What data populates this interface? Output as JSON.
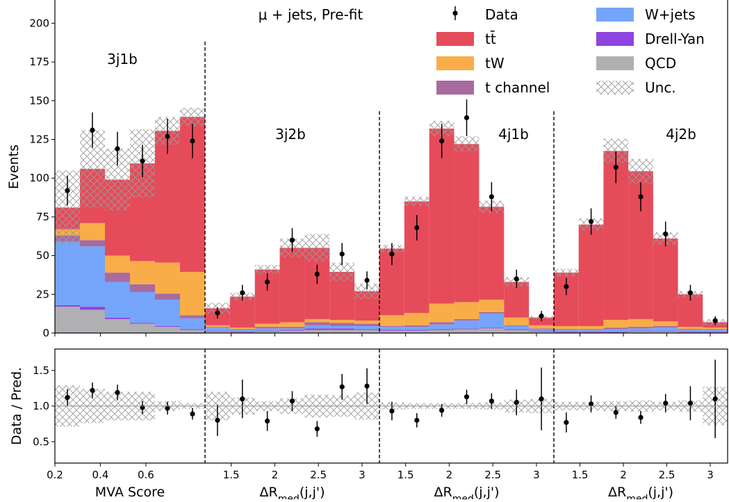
{
  "chart_data": {
    "type": "bar",
    "annotation": "μ + jets, Pre-fit",
    "upper": {
      "ylabel": "Events",
      "ylim": [
        0,
        215
      ],
      "yticks": [
        0,
        25,
        50,
        75,
        100,
        125,
        150,
        175,
        200
      ]
    },
    "lower": {
      "ylabel": "Data / Pred.",
      "ylim": [
        0.2,
        1.8
      ],
      "yticks": [
        0.5,
        1.0,
        1.5
      ],
      "yticklabels": [
        "0.5",
        "1.0",
        "1.5"
      ]
    },
    "legend": {
      "placement": "top-right",
      "entries": [
        {
          "key": "data",
          "label": "Data",
          "kind": "errorbar"
        },
        {
          "key": "ttbar",
          "label": "tt̄",
          "kind": "patch"
        },
        {
          "key": "tw",
          "label": "tW",
          "kind": "patch"
        },
        {
          "key": "tchan",
          "label": "t channel",
          "kind": "patch"
        },
        {
          "key": "wjets",
          "label": "W+jets",
          "kind": "patch"
        },
        {
          "key": "dy",
          "label": "Drell-Yan",
          "kind": "patch"
        },
        {
          "key": "qcd",
          "label": "QCD",
          "kind": "patch"
        },
        {
          "key": "unc",
          "label": "Unc.",
          "kind": "hatch"
        }
      ]
    },
    "colors": {
      "ttbar": "#e64b5a",
      "tw": "#f8ad48",
      "tchan": "#a96a9f",
      "wjets": "#74a5fb",
      "dy": "#8e44de",
      "qcd": "#b0afb2"
    },
    "stack_order": [
      "qcd",
      "dy",
      "wjets",
      "tchan",
      "tw",
      "ttbar"
    ],
    "regions": [
      {
        "name": "3j1b",
        "xlabel": "MVA Score",
        "xlim": [
          0.2,
          0.86
        ],
        "xticks": [
          0.2,
          0.4,
          0.6
        ],
        "xticklabels": [
          "0.2",
          "0.4",
          "0.6"
        ],
        "edges": [
          0.2,
          0.31,
          0.42,
          0.53,
          0.64,
          0.75,
          0.86
        ],
        "centers": [
          0.255,
          0.365,
          0.475,
          0.585,
          0.695,
          0.805
        ],
        "stacks": {
          "qcd": [
            17,
            15,
            9,
            6,
            4,
            2
          ],
          "dy": [
            1,
            2,
            1,
            0.5,
            0.5,
            0.5
          ],
          "wjets": [
            41,
            39,
            23,
            20,
            17,
            7
          ],
          "tchan": [
            4,
            4,
            6,
            5,
            4,
            2
          ],
          "tw": [
            4,
            11,
            11,
            15,
            20,
            28
          ],
          "ttbar": [
            14,
            35,
            49,
            63,
            85,
            100
          ]
        },
        "unc": [
          24,
          25,
          20,
          22,
          9,
          6
        ],
        "data": {
          "y": [
            92,
            131,
            119,
            111,
            127,
            124
          ],
          "err": [
            9.6,
            11.4,
            10.9,
            10.5,
            11.3,
            11.1
          ]
        },
        "ratio": {
          "y": [
            1.12,
            1.22,
            1.19,
            0.98,
            0.97,
            0.89
          ],
          "err": [
            0.12,
            0.11,
            0.11,
            0.09,
            0.09,
            0.08
          ],
          "unc": [
            0.29,
            0.24,
            0.2,
            0.2,
            0.07,
            0.04
          ]
        }
      },
      {
        "name": "3j2b",
        "xlabel": "ΔR_med(j,j')",
        "xlim": [
          1.2,
          3.2
        ],
        "xticks": [
          1.5,
          2.0,
          2.5,
          3.0
        ],
        "xticklabels": [
          "1.5",
          "2",
          "2.5",
          "3"
        ],
        "edges": [
          1.2,
          1.4857,
          1.7714,
          2.0571,
          2.3429,
          2.6286,
          2.9143,
          3.2
        ],
        "centers": [
          1.3429,
          1.6286,
          1.9143,
          2.2,
          2.4857,
          2.7714,
          3.0571
        ],
        "stacks": {
          "qcd": [
            1,
            0.5,
            1,
            1.5,
            2,
            2,
            2
          ],
          "dy": [
            0.5,
            0.5,
            0.5,
            0.5,
            1,
            1,
            0.5
          ],
          "wjets": [
            2,
            1,
            1.5,
            1,
            2,
            1.5,
            2
          ],
          "tchan": [
            0.5,
            0.5,
            1,
            1,
            2,
            2,
            1.5
          ],
          "tw": [
            1,
            1,
            2,
            3,
            2,
            2,
            2
          ],
          "ttbar": [
            11,
            20,
            35,
            48,
            46,
            31,
            19
          ]
        },
        "unc": [
          3.5,
          2.5,
          3,
          6,
          9,
          6,
          5
        ],
        "data": {
          "y": [
            13,
            26,
            33,
            60,
            38,
            51,
            34
          ],
          "err": [
            3.6,
            5.1,
            5.7,
            7.7,
            6.2,
            7.1,
            5.8
          ]
        },
        "ratio": {
          "y": [
            0.8,
            1.1,
            0.79,
            1.07,
            0.68,
            1.27,
            1.28
          ],
          "err": [
            0.22,
            0.27,
            0.14,
            0.14,
            0.11,
            0.18,
            0.25
          ],
          "unc": [
            0.2,
            0.12,
            0.07,
            0.11,
            0.16,
            0.15,
            0.19
          ]
        }
      },
      {
        "name": "4j1b",
        "xlabel": "ΔR_med(j,j')",
        "xlim": [
          1.2,
          3.2
        ],
        "xticks": [
          1.5,
          2.0,
          2.5,
          3.0
        ],
        "xticklabels": [
          "1.5",
          "2",
          "2.5",
          "3"
        ],
        "edges": [
          1.2,
          1.4857,
          1.7714,
          2.0571,
          2.3429,
          2.6286,
          2.9143,
          3.2
        ],
        "centers": [
          1.3429,
          1.6286,
          1.9143,
          2.2,
          2.4857,
          2.7714,
          3.0571
        ],
        "stacks": {
          "qcd": [
            1.5,
            1.5,
            2,
            2.5,
            3,
            2,
            1
          ],
          "dy": [
            0.5,
            0.5,
            0.5,
            0.5,
            0.5,
            0.5,
            0.5
          ],
          "wjets": [
            2,
            2,
            3,
            5,
            9,
            2,
            1
          ],
          "tchan": [
            0.5,
            1,
            1.5,
            1,
            1,
            0.5,
            0.5
          ],
          "tw": [
            7,
            8,
            12,
            11,
            8,
            5,
            2
          ],
          "ttbar": [
            43,
            72,
            113,
            102,
            60,
            23,
            5
          ]
        },
        "unc": [
          2.5,
          3,
          5,
          5,
          4,
          3,
          1
        ],
        "data": {
          "y": [
            51,
            68,
            124,
            139,
            88,
            35,
            11
          ],
          "err": [
            7.1,
            8.2,
            11.1,
            11.8,
            9.4,
            5.9,
            3.3
          ]
        },
        "ratio": {
          "y": [
            0.93,
            0.8,
            0.94,
            1.13,
            1.07,
            1.05,
            1.1
          ],
          "err": [
            0.13,
            0.1,
            0.09,
            0.1,
            0.11,
            0.18,
            0.44
          ],
          "unc": [
            0.05,
            0.04,
            0.04,
            0.04,
            0.05,
            0.09,
            0.1
          ]
        }
      },
      {
        "name": "4j2b",
        "xlabel": "ΔR_med(j,j')",
        "xlim": [
          1.2,
          3.2
        ],
        "xticks": [
          1.5,
          2.0,
          2.5,
          3.0
        ],
        "xticklabels": [
          "1.5",
          "2",
          "2.5",
          "3"
        ],
        "edges": [
          1.2,
          1.4857,
          1.7714,
          2.0571,
          2.3429,
          2.6286,
          2.9143,
          3.2
        ],
        "centers": [
          1.3429,
          1.6286,
          1.9143,
          2.2,
          2.4857,
          2.7714,
          3.0571
        ],
        "stacks": {
          "qcd": [
            0.5,
            0.5,
            0.5,
            1,
            1,
            0.5,
            0.5
          ],
          "dy": [
            0.5,
            0.5,
            0.5,
            0.5,
            0.5,
            0.5,
            0.5
          ],
          "wjets": [
            1,
            1,
            1.5,
            1.5,
            2,
            1,
            1
          ],
          "tchan": [
            0.5,
            0.5,
            1,
            1,
            1,
            0.5,
            0.5
          ],
          "tw": [
            2,
            2,
            5,
            5,
            3,
            1.5,
            1
          ],
          "ttbar": [
            34.5,
            65.5,
            109,
            95.5,
            53.5,
            21,
            3.5
          ]
        },
        "unc": [
          2.5,
          4,
          8,
          8,
          4,
          2,
          2
        ],
        "data": {
          "y": [
            30,
            72,
            107,
            88,
            64,
            26,
            8
          ],
          "err": [
            5.5,
            8.5,
            10.3,
            9.4,
            8.0,
            5.1,
            2.8
          ]
        },
        "ratio": {
          "y": [
            0.77,
            1.03,
            0.91,
            0.84,
            1.04,
            1.04,
            1.1
          ],
          "err": [
            0.14,
            0.12,
            0.09,
            0.09,
            0.13,
            0.24,
            0.55
          ],
          "unc": [
            0.06,
            0.06,
            0.07,
            0.08,
            0.06,
            0.08,
            0.27
          ]
        }
      }
    ]
  }
}
